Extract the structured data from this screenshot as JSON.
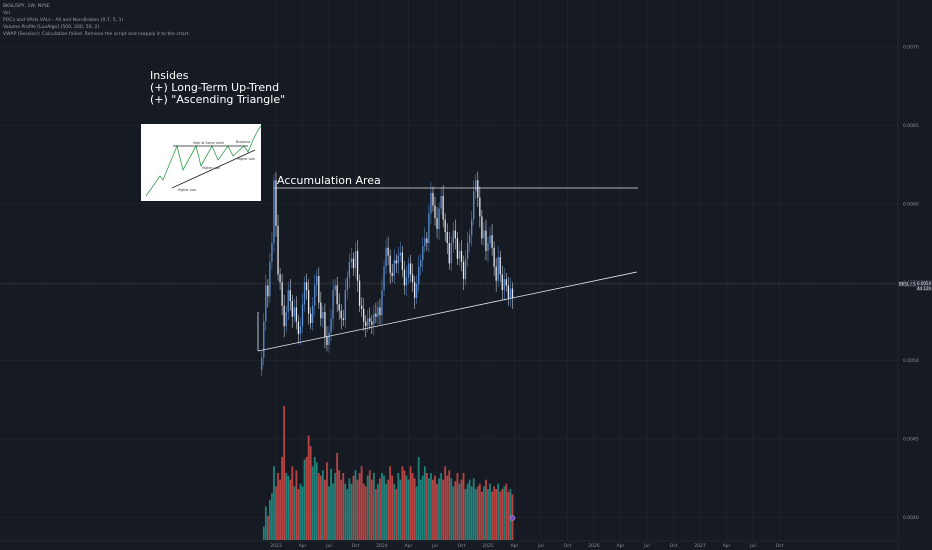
{
  "header": {
    "symbol_line": "BKSL/SPY, 1W, NYSE",
    "indicators": [
      "Vol",
      "POCs and VAHs VALs - All and Non-Broken (0.7, 5, 1)",
      "Volume Profile [LuxAlgo] (500, 200, 50, 2)",
      "VWAP (Session): Calculation failed. Remove the script and reapply it to the chart."
    ]
  },
  "note": {
    "lines": [
      "Insides",
      "(+) Long-Term Up-Trend",
      "(+) \"Ascending Triangle\""
    ]
  },
  "inset": {
    "labels": [
      "High at Same Level",
      "Breakout",
      "Higher Low",
      "Higher Low",
      "Higher Low"
    ]
  },
  "annotations": {
    "accumulation_label": "Accumulation Area"
  },
  "price_badge": {
    "symbol": "BKSL / SPY",
    "value": "0.0054",
    "countdown": "4d 12h"
  },
  "colors": {
    "background": "#161a22",
    "grid": "#252a34",
    "up": "#5b8fd6",
    "down": "#e6e9ef",
    "vol_up": "#26a69a",
    "vol_down": "#ef5350",
    "line": "#e6e9ef"
  },
  "chart_data": {
    "type": "candlestick",
    "title": "BKSL/SPY, 1W, NYSE",
    "y_ticks": [
      "0.0070",
      "0.0065",
      "0.0060",
      "0.0055",
      "0.0050",
      "0.0045",
      "0.0040"
    ],
    "x_ticks": [
      "2023",
      "Apr",
      "Jul",
      "Oct",
      "2024",
      "Apr",
      "Jul",
      "Oct",
      "2025",
      "Apr",
      "Jul",
      "Oct",
      "2026",
      "Apr",
      "Jul",
      "Oct",
      "2027",
      "Apr",
      "Jul",
      "Oct"
    ],
    "ylim": [
      0.00385,
      0.0073
    ],
    "last_price": 0.0054,
    "grid": true,
    "price_series_start": "2022-11-14",
    "weekly_close": [
      0.00502,
      0.00525,
      0.00548,
      0.00541,
      0.00563,
      0.00575,
      0.00615,
      0.00586,
      0.00555,
      0.0055,
      0.00535,
      0.00522,
      0.00531,
      0.00545,
      0.00538,
      0.00528,
      0.00534,
      0.00525,
      0.00517,
      0.00522,
      0.00536,
      0.0055,
      0.00545,
      0.0053,
      0.00524,
      0.00535,
      0.00548,
      0.00554,
      0.00537,
      0.00527,
      0.00531,
      0.00515,
      0.0051,
      0.00518,
      0.00527,
      0.00545,
      0.00548,
      0.00536,
      0.00532,
      0.00527,
      0.00526,
      0.00545,
      0.00553,
      0.00563,
      0.00565,
      0.00559,
      0.0057,
      0.00551,
      0.00535,
      0.00533,
      0.00525,
      0.00522,
      0.00527,
      0.00525,
      0.00523,
      0.0053,
      0.00528,
      0.00534,
      0.00529,
      0.00545,
      0.0056,
      0.00572,
      0.00567,
      0.00556,
      0.00554,
      0.00564,
      0.00562,
      0.00567,
      0.00569,
      0.00558,
      0.00548,
      0.00553,
      0.00562,
      0.00555,
      0.0055,
      0.0054,
      0.00549,
      0.0056,
      0.00564,
      0.00573,
      0.00578,
      0.00575,
      0.00594,
      0.00607,
      0.00599,
      0.00591,
      0.00584,
      0.00597,
      0.00605,
      0.0059,
      0.00582,
      0.00575,
      0.00562,
      0.00575,
      0.00583,
      0.00578,
      0.00565,
      0.0057,
      0.00563,
      0.00552,
      0.00565,
      0.00575,
      0.0058,
      0.0059,
      0.00608,
      0.00615,
      0.00604,
      0.00592,
      0.00578,
      0.00583,
      0.0057,
      0.00575,
      0.0058,
      0.00572,
      0.0056,
      0.00551,
      0.00566,
      0.00555,
      0.00545,
      0.00552,
      0.00548,
      0.0054,
      0.00546,
      0.0054
    ],
    "weekly_volume": [
      0.0,
      0.1,
      0.25,
      0.18,
      0.3,
      0.35,
      0.55,
      0.4,
      0.5,
      0.45,
      0.62,
      1.0,
      0.5,
      0.48,
      0.45,
      0.55,
      0.4,
      0.52,
      0.38,
      0.42,
      0.4,
      0.6,
      0.62,
      0.78,
      0.7,
      0.55,
      0.62,
      0.58,
      0.5,
      0.48,
      0.52,
      0.45,
      0.58,
      0.4,
      0.53,
      0.42,
      0.5,
      0.65,
      0.52,
      0.45,
      0.5,
      0.42,
      0.38,
      0.46,
      0.42,
      0.48,
      0.52,
      0.45,
      0.5,
      0.55,
      0.42,
      0.4,
      0.48,
      0.52,
      0.45,
      0.5,
      0.38,
      0.42,
      0.46,
      0.5,
      0.48,
      0.42,
      0.45,
      0.55,
      0.48,
      0.42,
      0.38,
      0.5,
      0.45,
      0.55,
      0.52,
      0.48,
      0.45,
      0.55,
      0.5,
      0.46,
      0.4,
      0.62,
      0.45,
      0.48,
      0.55,
      0.5,
      0.46,
      0.5,
      0.45,
      0.48,
      0.42,
      0.46,
      0.5,
      0.45,
      0.55,
      0.48,
      0.52,
      0.46,
      0.4,
      0.44,
      0.5,
      0.42,
      0.45,
      0.5,
      0.38,
      0.42,
      0.45,
      0.4,
      0.46,
      0.38,
      0.4,
      0.42,
      0.36,
      0.4,
      0.45,
      0.38,
      0.42,
      0.36,
      0.4,
      0.38,
      0.42,
      0.36,
      0.38,
      0.4,
      0.42,
      0.36,
      0.38,
      0.34
    ]
  }
}
